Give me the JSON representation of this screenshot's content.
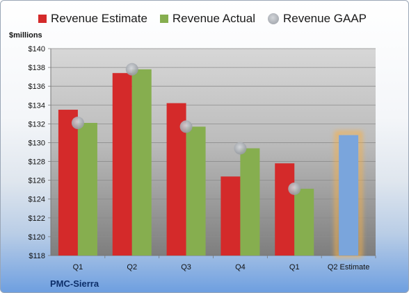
{
  "legend": {
    "estimate": "Revenue Estimate",
    "actual": "Revenue Actual",
    "gaap": "Revenue GAAP"
  },
  "unit_label": "$millions",
  "company": "PMC-Sierra",
  "colors": {
    "estimate": "#d42a2a",
    "actual": "#86ae4f",
    "gaap": "#b0b4ba",
    "highlight_bar": "#7aa5dc",
    "highlight_glow": "#f5b04a"
  },
  "chart_data": {
    "type": "bar",
    "ylabel": "$millions",
    "ylim": [
      118,
      140
    ],
    "yticks": [
      "$118",
      "$120",
      "$122",
      "$124",
      "$126",
      "$128",
      "$130",
      "$132",
      "$134",
      "$136",
      "$138",
      "$140"
    ],
    "categories": [
      "Q1",
      "Q2",
      "Q3",
      "Q4",
      "Q1",
      "Q2 Estimate"
    ],
    "grid": true,
    "legend_position": "top",
    "series": [
      {
        "name": "Revenue Estimate",
        "values": [
          133.5,
          137.4,
          134.2,
          126.4,
          127.8,
          null
        ]
      },
      {
        "name": "Revenue Actual",
        "values": [
          132.1,
          137.8,
          131.7,
          129.4,
          125.1,
          null
        ]
      },
      {
        "name": "Revenue GAAP",
        "values": [
          132.1,
          137.8,
          131.7,
          129.4,
          125.1,
          null
        ]
      }
    ],
    "estimate_highlight": {
      "category": "Q2 Estimate",
      "value": 130.8
    }
  }
}
